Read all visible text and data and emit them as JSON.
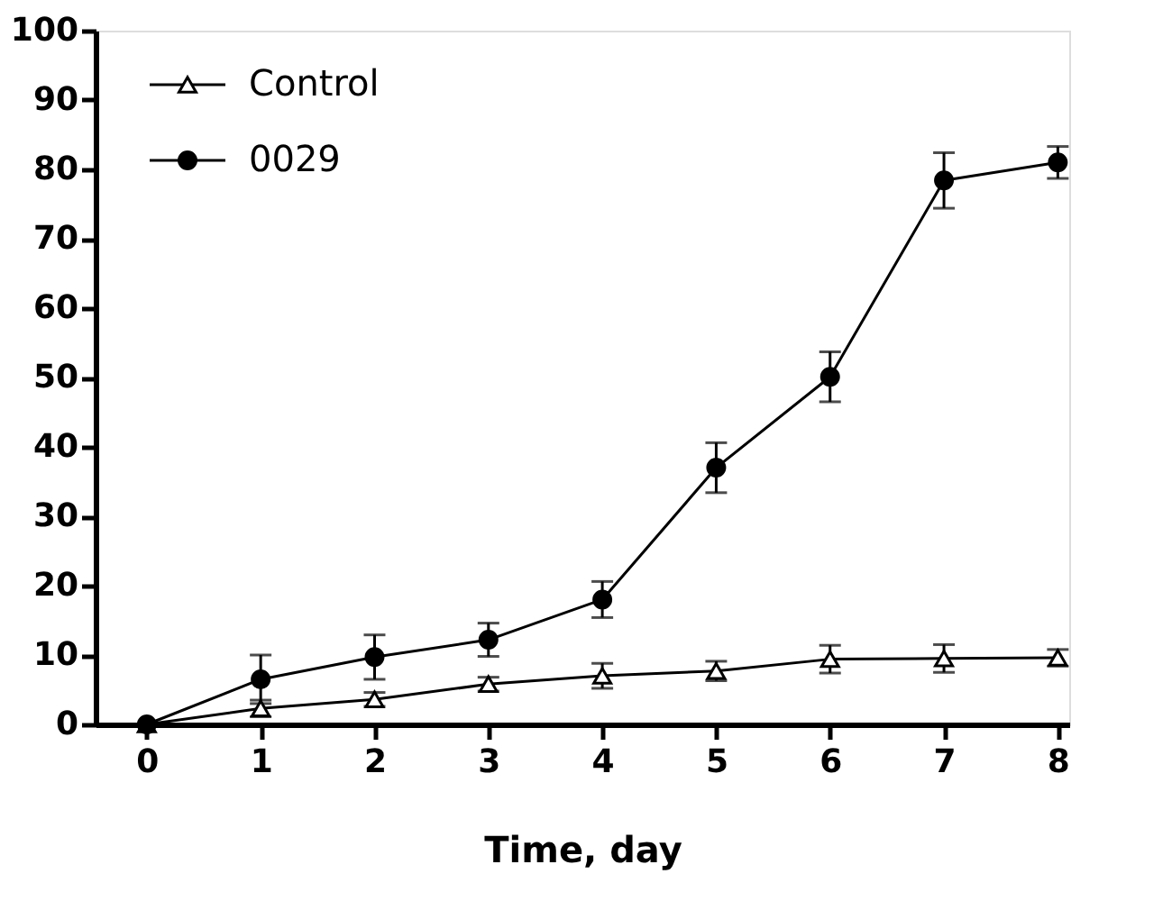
{
  "chart_data": {
    "type": "line",
    "xlabel": "Time, day",
    "x": [
      0,
      1,
      2,
      3,
      4,
      5,
      6,
      7,
      8
    ],
    "series": [
      {
        "name": "Control",
        "color": "#000000",
        "marker": "triangle",
        "values": [
          0,
          2.3,
          3.6,
          5.8,
          7.0,
          7.7,
          9.4,
          9.5,
          9.6
        ],
        "errors": [
          null,
          1.2,
          1.0,
          1.0,
          1.8,
          1.4,
          2.0,
          2.0,
          1.2
        ]
      },
      {
        "name": "0029",
        "color": "#000000",
        "marker": "circle",
        "values": [
          0,
          6.5,
          9.7,
          12.2,
          18.0,
          37.0,
          50.1,
          78.4,
          81.0
        ],
        "errors": [
          null,
          3.5,
          3.2,
          2.4,
          2.6,
          3.6,
          3.6,
          4.0,
          2.3
        ]
      }
    ],
    "xlim": [
      -0.45,
      8.1
    ],
    "xticks": [
      0,
      1,
      2,
      3,
      4,
      5,
      6,
      7,
      8
    ],
    "ylim": [
      0,
      100
    ],
    "yticks": [
      0,
      10,
      20,
      30,
      40,
      50,
      60,
      70,
      80,
      90,
      100
    ],
    "grid": false,
    "legend": "top left",
    "line_style": "solid"
  }
}
